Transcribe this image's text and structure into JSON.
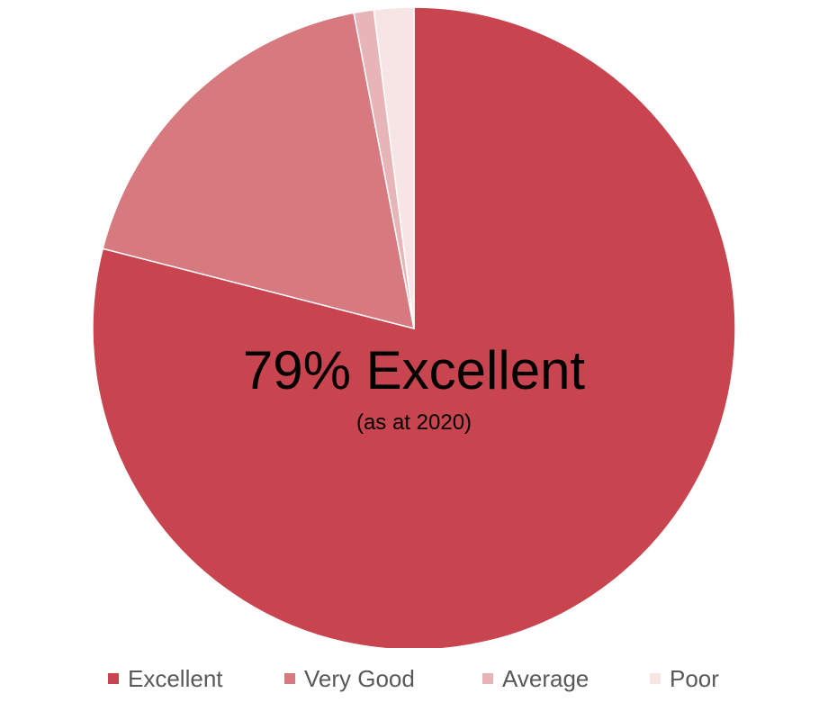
{
  "chart_data": {
    "type": "pie",
    "categories": [
      "Excellent",
      "Very Good",
      "Average",
      "Poor"
    ],
    "values": [
      79,
      18,
      1,
      2
    ],
    "colors": [
      "#c8444f",
      "#d67a80",
      "#e7b4b7",
      "#f7e5e6"
    ],
    "start": "12 o'clock",
    "direction": "clockwise",
    "center_label": "79% Excellent",
    "center_sublabel": "(as at 2020)",
    "legend_position": "bottom",
    "title": "",
    "series": [
      {
        "name": "Excellent",
        "value": 79
      },
      {
        "name": "Very Good",
        "value": 18
      },
      {
        "name": "Average",
        "value": 1
      },
      {
        "name": "Poor",
        "value": 2
      }
    ]
  }
}
